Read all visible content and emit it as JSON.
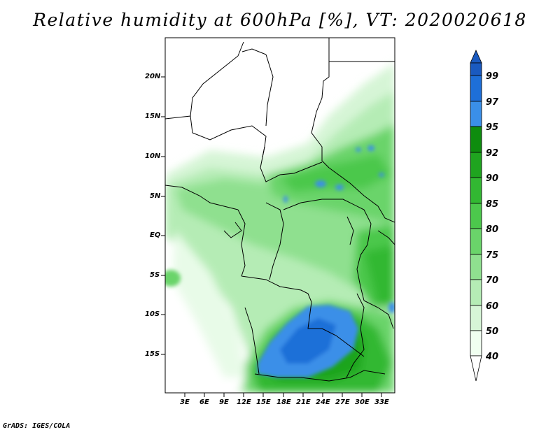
{
  "title": "Relative humidity at 600hPa [%], VT: 2020020618",
  "footer": "GrADS: IGES/COLA",
  "lat_labels": [
    "20N",
    "15N",
    "10N",
    "5N",
    "EQ",
    "5S",
    "10S",
    "15S"
  ],
  "lon_labels": [
    "3E",
    "6E",
    "9E",
    "12E",
    "15E",
    "18E",
    "21E",
    "24E",
    "27E",
    "30E",
    "33E"
  ],
  "colorbar": {
    "levels": [
      "40",
      "50",
      "60",
      "70",
      "75",
      "80",
      "85",
      "90",
      "92",
      "95",
      "97",
      "99"
    ],
    "colors": [
      "#f0fff0",
      "#d6f5d6",
      "#b5ecb5",
      "#8fe08f",
      "#6ad46a",
      "#4cc84c",
      "#32b832",
      "#1fa41f",
      "#0e8c0e",
      "#3a8fe8",
      "#1e6fd8",
      "#1a5ac0"
    ]
  },
  "map": {
    "lon_range": [
      0,
      35
    ],
    "lat_range": [
      -20,
      24.5
    ]
  }
}
